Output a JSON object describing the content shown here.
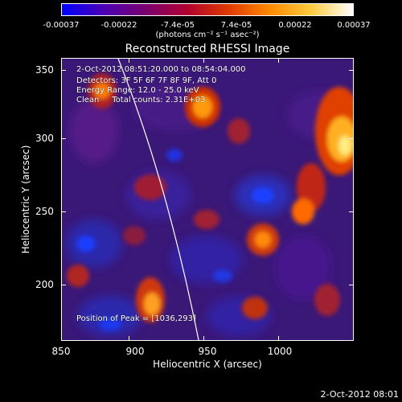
{
  "colorbar": {
    "tick_labels": [
      "-0.00037",
      "-0.00022",
      "-7.4e-05",
      "7.4e-05",
      "0.00022",
      "0.00037"
    ],
    "units": "(photons cm⁻² s⁻¹ asec⁻²)",
    "gradient": [
      "#0000ff",
      "#4b00b4",
      "#7a0070",
      "#b00030",
      "#e03a00",
      "#ff8a00",
      "#ffcc40",
      "#ffffff"
    ]
  },
  "plot": {
    "title": "Reconstructed RHESSI Image",
    "time_range": "2-Oct-2012 08:51:20.000 to 08:54:04.000",
    "detectors": "Detectors: 3F 5F 6F 7F 8F 9F, Att 0",
    "energy_range": "Energy Range: 12.0 - 25.0 keV",
    "method_counts": "Clean     Total counts: 2.31E+03",
    "peak_position": "Position of Peak = [1036,293]"
  },
  "axes": {
    "xlabel": "Heliocentric X (arcsec)",
    "ylabel": "Heliocentric Y (arcsec)",
    "xticks": [
      "850",
      "900",
      "950",
      "1000"
    ],
    "yticks": [
      "350",
      "300",
      "250",
      "200"
    ]
  },
  "footer": {
    "date": "2-Oct-2012 08:01"
  }
}
